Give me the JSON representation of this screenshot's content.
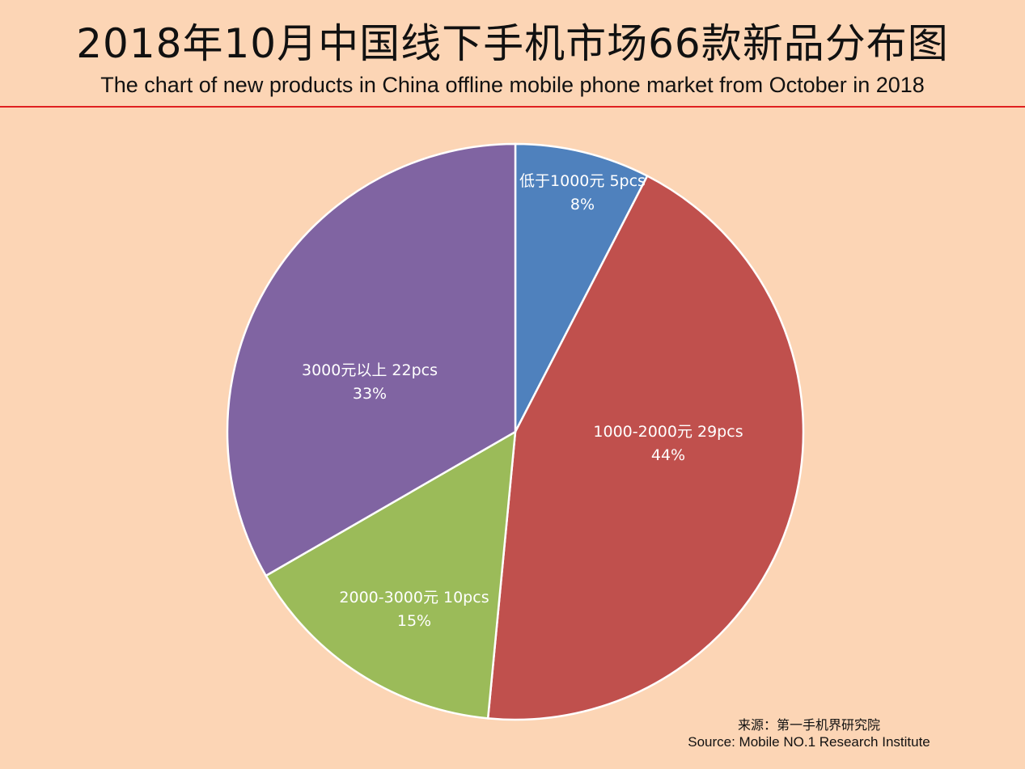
{
  "header": {
    "title": "2018年10月中国线下手机市场66款新品分布图",
    "subtitle": "The chart of new products in China offline mobile phone market from  October in 2018"
  },
  "chart_data": {
    "type": "pie",
    "slices": [
      {
        "category": "低于1000元",
        "count_label": "5pcs",
        "value": 5,
        "percent_label": "8%",
        "color": "#4F81BD"
      },
      {
        "category": "1000-2000元",
        "count_label": "29pcs",
        "value": 29,
        "percent_label": "44%",
        "color": "#C0504D"
      },
      {
        "category": "2000-3000元",
        "count_label": "10pcs",
        "value": 10,
        "percent_label": "15%",
        "color": "#9BBB59"
      },
      {
        "category": "3000元以上",
        "count_label": "22pcs",
        "value": 22,
        "percent_label": "33%",
        "color": "#8064A2"
      }
    ],
    "start": "12 o'clock",
    "direction": "clockwise",
    "legend": "none"
  },
  "source": {
    "zh": "来源：第一手机界研究院",
    "en": "Source: Mobile NO.1 Research Institute"
  }
}
